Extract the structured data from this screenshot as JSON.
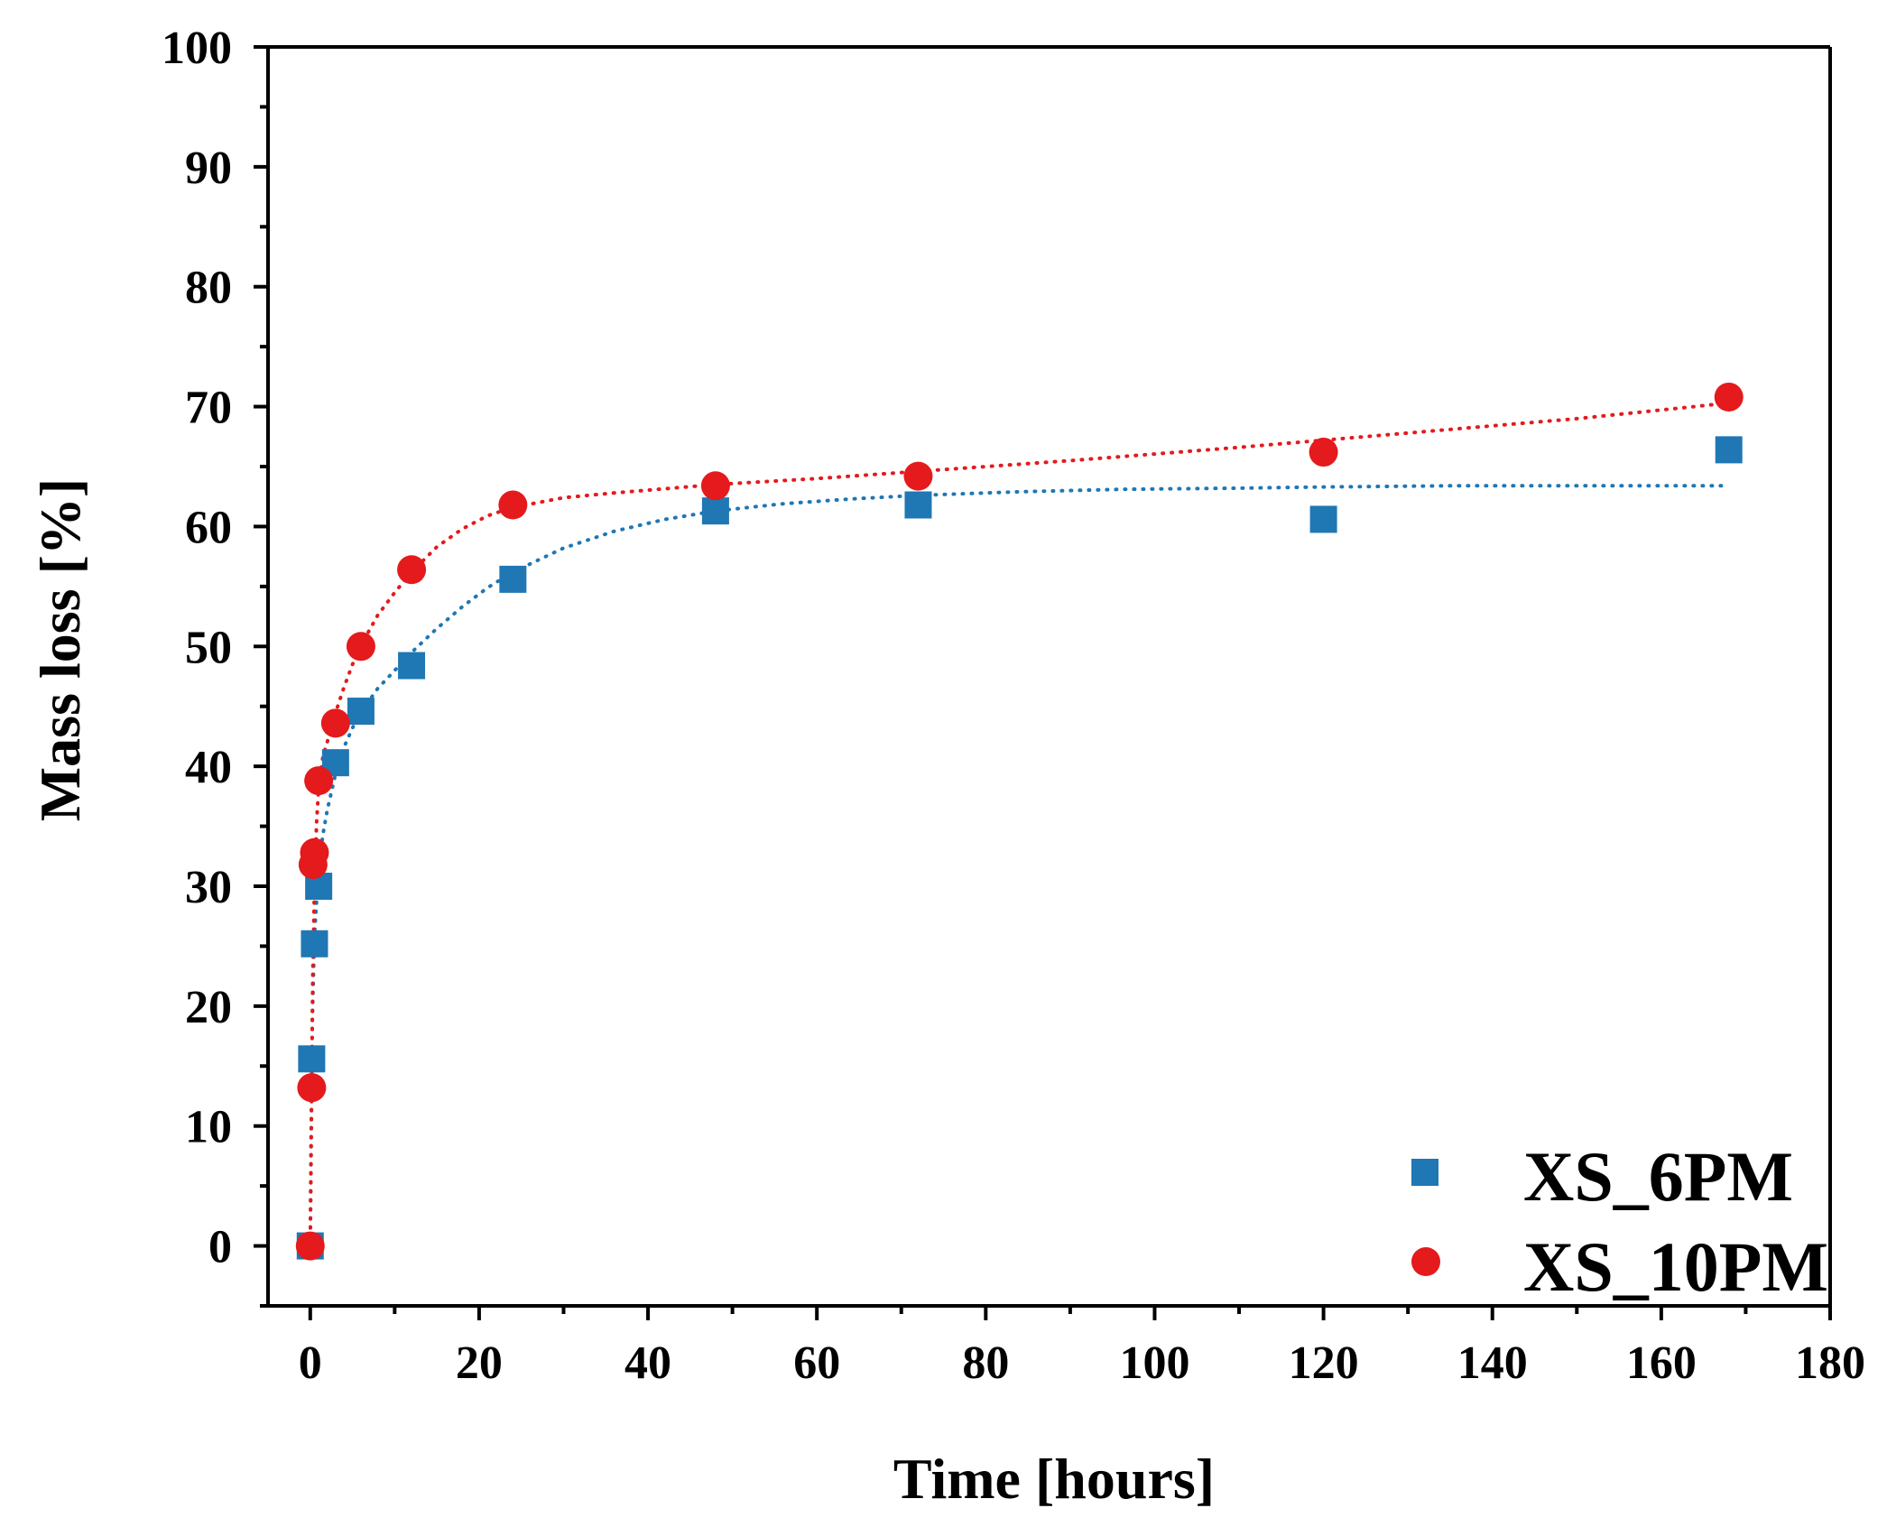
{
  "chart_data": {
    "type": "scatter",
    "title": "",
    "xlabel": "Time [hours]",
    "ylabel": "Mass loss [%]",
    "xlim": [
      -5,
      180
    ],
    "ylim": [
      -5,
      100
    ],
    "xticks": [
      0,
      20,
      40,
      60,
      80,
      100,
      120,
      140,
      160,
      180
    ],
    "xticklabels": [
      "0",
      "20",
      "40",
      "60",
      "80",
      "100",
      "120",
      "140",
      "160",
      "180"
    ],
    "yticks": [
      0,
      10,
      20,
      30,
      40,
      50,
      60,
      70,
      80,
      90,
      100
    ],
    "yticklabels": [
      "0",
      "10",
      "20",
      "30",
      "40",
      "50",
      "60",
      "70",
      "80",
      "90",
      "100"
    ],
    "legend_position": "bottom-right",
    "series": [
      {
        "name": "XS_6PM",
        "marker": "square",
        "color": "#1f77b4",
        "x": [
          0,
          0.17,
          0.5,
          1,
          3,
          6,
          12,
          24,
          48,
          72,
          120,
          168
        ],
        "y": [
          0,
          15.6,
          25.2,
          30.0,
          40.3,
          44.6,
          48.4,
          55.6,
          61.3,
          61.8,
          60.6,
          66.4
        ],
        "fit": {
          "style": "dotted",
          "x": [
            0,
            0.25,
            0.5,
            1,
            1.5,
            2,
            3,
            4,
            5,
            6,
            8,
            10,
            12,
            15,
            18,
            21,
            24,
            30,
            36,
            42,
            48,
            56,
            64,
            72,
            84,
            96,
            110,
            120,
            135,
            150,
            168
          ],
          "y": [
            0,
            19,
            26,
            31.5,
            34.3,
            36.3,
            39.4,
            41.6,
            43.2,
            44.5,
            46.5,
            48.0,
            49.5,
            51.5,
            53.3,
            54.9,
            56.2,
            58.2,
            59.6,
            60.6,
            61.3,
            61.9,
            62.3,
            62.6,
            62.9,
            63.1,
            63.2,
            63.3,
            63.4,
            63.4,
            63.4
          ]
        }
      },
      {
        "name": "XS_10PM",
        "marker": "circle",
        "color": "#e41a1c",
        "x": [
          0,
          0.17,
          0.33,
          0.5,
          1,
          3,
          6,
          12,
          24,
          48,
          72,
          120,
          168
        ],
        "y": [
          0,
          13.2,
          31.8,
          32.8,
          38.8,
          43.6,
          50.0,
          56.4,
          61.8,
          63.4,
          64.2,
          66.2,
          70.8
        ],
        "fit": {
          "style": "dotted",
          "x": [
            0,
            0.1,
            0.2,
            0.3,
            0.5,
            0.75,
            1,
            1.5,
            2,
            3,
            4,
            5,
            6,
            8,
            10,
            12,
            15,
            18,
            21,
            24,
            30,
            36,
            48,
            60,
            72,
            90,
            110,
            130,
            150,
            168
          ],
          "y": [
            0,
            8.5,
            16,
            22.5,
            30,
            35.3,
            38.2,
            40.8,
            42.0,
            44.5,
            46.6,
            48.5,
            50.1,
            52.6,
            54.5,
            56.2,
            58.3,
            59.8,
            60.9,
            61.6,
            62.4,
            62.8,
            63.5,
            64.0,
            64.6,
            65.5,
            66.6,
            67.8,
            69.0,
            70.3
          ]
        }
      }
    ]
  }
}
